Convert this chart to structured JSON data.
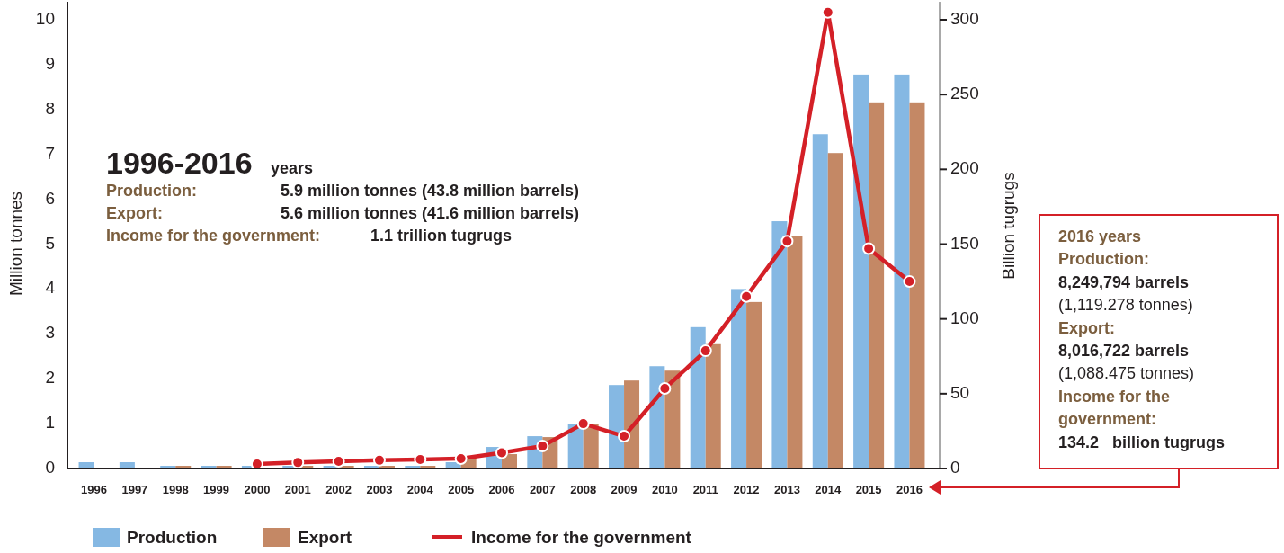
{
  "chart_data": {
    "type": "bar",
    "xlabel": null,
    "ylabel": "Million tonnes",
    "y2label": "Billion tugrugs",
    "categories": [
      "1996",
      "1997",
      "1998",
      "1999",
      "2000",
      "2001",
      "2002",
      "2003",
      "2004",
      "2005",
      "2006",
      "2007",
      "2008",
      "2009",
      "2010",
      "2011",
      "2012",
      "2013",
      "2014",
      "2015",
      "2016"
    ],
    "series": [
      {
        "name": "Production",
        "color": "#85b8e3",
        "values": [
          0.14,
          0.14,
          0.06,
          0.06,
          0.06,
          0.06,
          0.06,
          0.06,
          0.06,
          0.14,
          0.48,
          0.72,
          1.0,
          1.86,
          2.28,
          3.15,
          4.0,
          5.51,
          7.45,
          8.78,
          8.78
        ]
      },
      {
        "name": "Export",
        "color": "#c48865",
        "values": [
          0,
          0,
          0.06,
          0.06,
          0,
          0.06,
          0.06,
          0.06,
          0.06,
          0.28,
          0.32,
          0.7,
          1.0,
          1.96,
          2.18,
          2.77,
          3.71,
          5.19,
          7.03,
          8.16,
          8.16
        ]
      },
      {
        "name": "Income for the government",
        "type": "line",
        "axis": "y2",
        "color": "#d42027",
        "values": [
          null,
          null,
          null,
          null,
          3,
          4,
          4.8,
          5.5,
          6,
          6.6,
          10.5,
          15,
          30,
          21.6,
          53.5,
          78.7,
          115,
          152,
          305,
          147,
          125
        ]
      }
    ],
    "ylim": [
      0,
      10.4
    ],
    "yticks": [
      0,
      1,
      2,
      3,
      4,
      5,
      6,
      7,
      8,
      9,
      10
    ],
    "y2lim": [
      0,
      312
    ],
    "y2ticks": [
      0,
      50,
      100,
      150,
      200,
      250,
      300
    ],
    "grid": false,
    "legend": "bottom",
    "marker": "circle",
    "line_style": "solid",
    "annotations": [
      "1996-2016",
      "years",
      "Production:",
      "5.9 million tonnes (43.8 million barrels)",
      "Export:",
      "5.6 million tonnes (41.6 million barrels)",
      "Income for the government:",
      "1.1 trillion tugrugs",
      "2016 years",
      "Production:",
      "8,249,794 barrels",
      "(1,119.278 tonnes)",
      "Export:",
      "8,016,722 barrels",
      "(1,088.475 tonnes)",
      "Income for the",
      "government:",
      "134.2   billion tugrugs"
    ]
  }
}
